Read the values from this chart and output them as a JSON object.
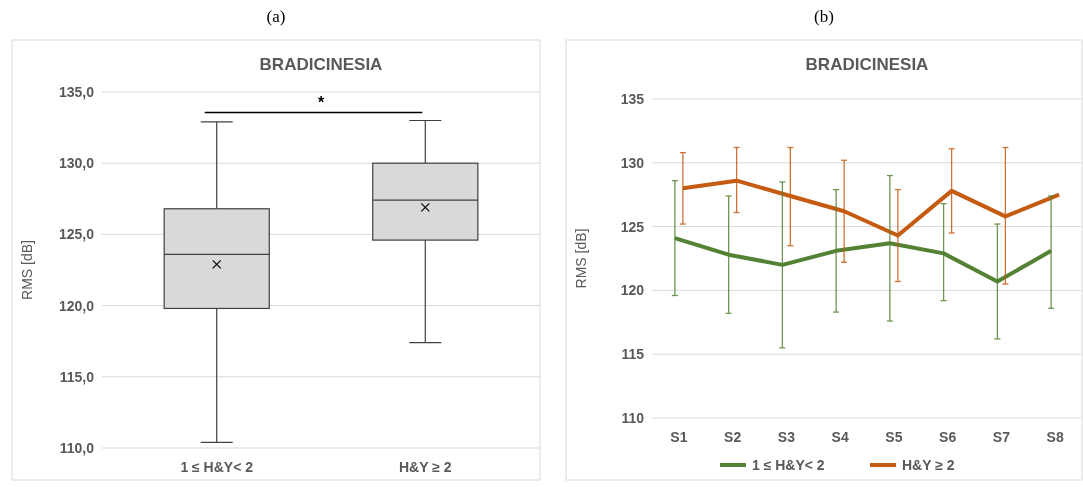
{
  "chart_data": [
    {
      "type": "box",
      "title": "BRADICINESIA",
      "ylabel": "RMS [dB]",
      "categories": [
        "1 ≤ H&Y< 2",
        "H&Y ≥ 2"
      ],
      "boxes": [
        {
          "low": 110.4,
          "q1": 119.8,
          "median": 123.6,
          "q3": 126.8,
          "high": 132.9,
          "mean": 122.9
        },
        {
          "low": 117.4,
          "q1": 124.6,
          "median": 127.4,
          "q3": 130.0,
          "high": 133.0,
          "mean": 126.9
        }
      ],
      "color": "#d9d9d9",
      "ylim": [
        110,
        135
      ],
      "yticks": [
        {
          "value": 110,
          "label": "110,0"
        },
        {
          "value": 115,
          "label": "115,0"
        },
        {
          "value": 120,
          "label": "120,0"
        },
        {
          "value": 125,
          "label": "125,0"
        },
        {
          "value": 130,
          "label": "130,0"
        },
        {
          "value": 135,
          "label": "135,0"
        }
      ],
      "grid": "y",
      "annotations": [
        "(a)",
        "*"
      ]
    },
    {
      "type": "line",
      "title": "BRADICINESIA",
      "ylabel": "RMS [dB]",
      "categories": [
        "S1",
        "S2",
        "S3",
        "S4",
        "S5",
        "S6",
        "S7",
        "S8"
      ],
      "series": [
        {
          "name": "1 ≤ H&Y< 2",
          "color": "#548235",
          "values": [
            124.1,
            122.8,
            122.0,
            123.1,
            123.7,
            122.9,
            120.7,
            123.1
          ],
          "errors": [
            [
              119.6,
              128.6
            ],
            [
              118.2,
              127.4
            ],
            [
              115.5,
              128.5
            ],
            [
              118.3,
              127.9
            ],
            [
              117.6,
              129.0
            ],
            [
              119.2,
              126.8
            ],
            [
              116.2,
              125.2
            ],
            [
              118.6,
              127.4
            ]
          ]
        },
        {
          "name": "H&Y ≥ 2",
          "color": "#c55a11",
          "values": [
            128.0,
            128.6,
            127.4,
            126.2,
            124.3,
            127.8,
            125.8,
            127.5
          ],
          "errors": [
            [
              125.2,
              130.8
            ],
            [
              126.1,
              131.2
            ],
            [
              123.5,
              131.2
            ],
            [
              122.2,
              130.2
            ],
            [
              120.7,
              127.9
            ],
            [
              124.5,
              131.1
            ],
            [
              120.5,
              131.2
            ],
            null
          ]
        }
      ],
      "ylim": [
        110,
        135
      ],
      "yticks": [
        110,
        115,
        120,
        125,
        130,
        135
      ],
      "grid": "y",
      "legend": "bottom",
      "marker": "none",
      "line_style": "solid",
      "annotations": [
        "(b)"
      ]
    }
  ]
}
